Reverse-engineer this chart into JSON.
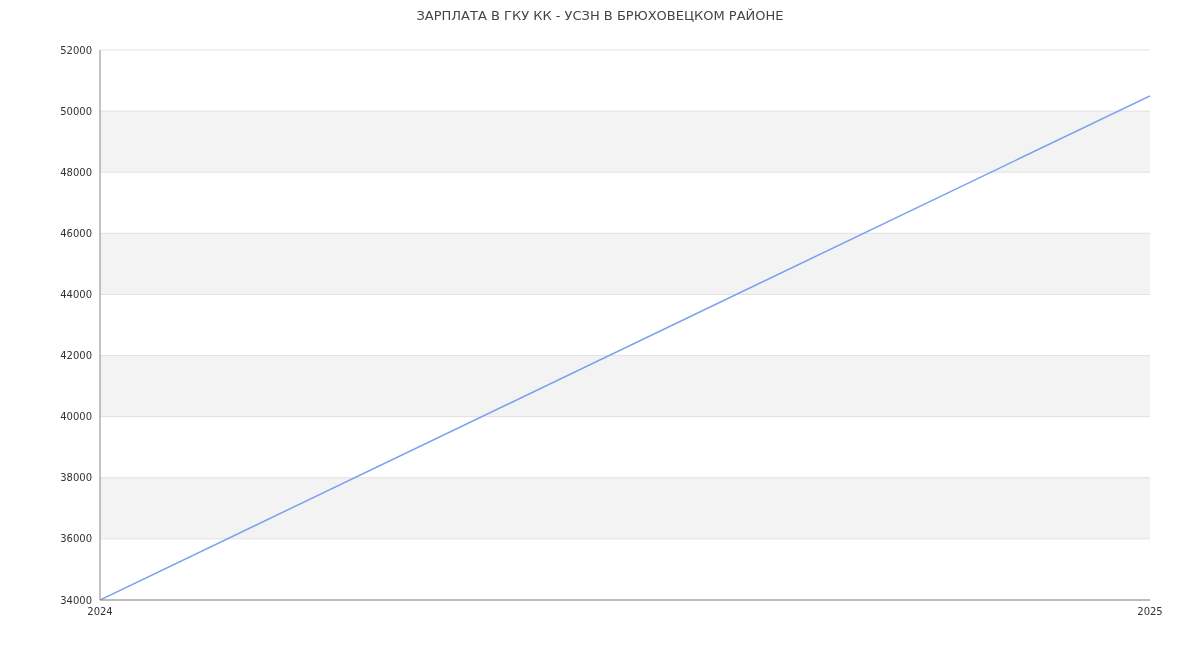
{
  "chart_data": {
    "type": "line",
    "title": "ЗАРПЛАТА В ГКУ КК - УСЗН В БРЮХОВЕЦКОМ РАЙОНЕ",
    "x": [
      2024,
      2025
    ],
    "series": [
      {
        "color": "#7aa0f0",
        "values": [
          34000,
          50500
        ]
      }
    ],
    "xlim": [
      2024,
      2025
    ],
    "xticks": [
      2024,
      2025
    ],
    "ylim": [
      34000,
      52000
    ],
    "yticks": [
      34000,
      36000,
      38000,
      40000,
      42000,
      44000,
      46000,
      48000,
      50000,
      52000
    ],
    "grid": "y",
    "marker": "none",
    "line_style": "solid",
    "legend": false
  }
}
